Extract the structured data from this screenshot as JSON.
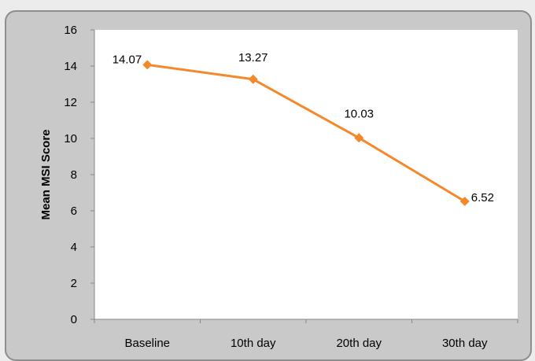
{
  "chart_data": {
    "type": "line",
    "categories": [
      "Baseline",
      "10th day",
      "20th day",
      "30th day"
    ],
    "series": [
      {
        "values": [
          14.07,
          13.27,
          10.03,
          6.52
        ]
      }
    ],
    "data_labels": [
      "14.07",
      "13.27",
      "10.03",
      "6.52"
    ],
    "xlabel": "",
    "ylabel": "Mean MSI Score",
    "ylim": [
      0,
      16
    ],
    "yticks": [
      0,
      2,
      4,
      6,
      8,
      10,
      12,
      14,
      16
    ],
    "grid": false,
    "legend": "none",
    "line_color": "#F4892C",
    "plot_background": "#ffffff",
    "frame_background": "#c9c9c9"
  }
}
